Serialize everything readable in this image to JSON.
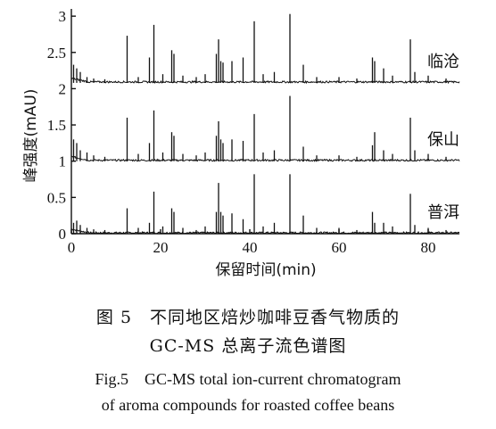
{
  "chart_data": {
    "type": "line",
    "ylabel": "峰强度(mAU)",
    "xlabel": "保留时间(min)",
    "xlim": [
      0,
      87
    ],
    "ylim": [
      0,
      3.1
    ],
    "x_ticks": [
      0,
      20,
      40,
      60,
      80
    ],
    "y_ticks": [
      0,
      0.5,
      1,
      1.5,
      2,
      2.5,
      3
    ],
    "y_tick_labels": [
      "0",
      "0.5",
      "1",
      "1.5",
      "2",
      "2.5",
      "3"
    ],
    "series": [
      {
        "name": "普洱",
        "baseline": 0.0,
        "peaks": [
          [
            0.5,
            0.15
          ],
          [
            1.2,
            0.18
          ],
          [
            2.0,
            0.12
          ],
          [
            3.5,
            0.08
          ],
          [
            5.0,
            0.06
          ],
          [
            7.5,
            0.05
          ],
          [
            12.5,
            0.35
          ],
          [
            15.0,
            0.08
          ],
          [
            17.5,
            0.15
          ],
          [
            18.5,
            0.58
          ],
          [
            20.5,
            0.1
          ],
          [
            22.5,
            0.35
          ],
          [
            23.0,
            0.3
          ],
          [
            25.0,
            0.08
          ],
          [
            28.0,
            0.05
          ],
          [
            30.0,
            0.1
          ],
          [
            32.5,
            0.3
          ],
          [
            33.0,
            0.7
          ],
          [
            33.5,
            0.3
          ],
          [
            34.0,
            0.25
          ],
          [
            36.0,
            0.28
          ],
          [
            38.5,
            0.2
          ],
          [
            41.0,
            0.82
          ],
          [
            43.0,
            0.1
          ],
          [
            45.5,
            0.15
          ],
          [
            49.0,
            0.82
          ],
          [
            52.0,
            0.25
          ],
          [
            55.0,
            0.08
          ],
          [
            60.0,
            0.08
          ],
          [
            64.0,
            0.05
          ],
          [
            67.5,
            0.3
          ],
          [
            68.0,
            0.15
          ],
          [
            70.0,
            0.15
          ],
          [
            72.0,
            0.1
          ],
          [
            76.0,
            0.55
          ],
          [
            77.0,
            0.12
          ],
          [
            80.0,
            0.08
          ],
          [
            84.0,
            0.05
          ]
        ]
      },
      {
        "name": "保山",
        "baseline": 1.0,
        "peaks": [
          [
            0.5,
            0.3
          ],
          [
            1.2,
            0.25
          ],
          [
            2.0,
            0.15
          ],
          [
            3.5,
            0.12
          ],
          [
            5.0,
            0.08
          ],
          [
            7.5,
            0.06
          ],
          [
            12.5,
            0.6
          ],
          [
            15.0,
            0.1
          ],
          [
            17.5,
            0.25
          ],
          [
            18.5,
            0.7
          ],
          [
            20.5,
            0.12
          ],
          [
            22.5,
            0.4
          ],
          [
            23.0,
            0.35
          ],
          [
            25.0,
            0.1
          ],
          [
            28.0,
            0.08
          ],
          [
            30.0,
            0.12
          ],
          [
            32.5,
            0.35
          ],
          [
            33.0,
            0.55
          ],
          [
            33.5,
            0.3
          ],
          [
            34.0,
            0.25
          ],
          [
            36.0,
            0.3
          ],
          [
            38.5,
            0.28
          ],
          [
            41.0,
            0.65
          ],
          [
            43.0,
            0.12
          ],
          [
            45.5,
            0.15
          ],
          [
            49.0,
            0.9
          ],
          [
            52.0,
            0.2
          ],
          [
            55.0,
            0.08
          ],
          [
            60.0,
            0.08
          ],
          [
            64.0,
            0.06
          ],
          [
            67.5,
            0.22
          ],
          [
            68.0,
            0.4
          ],
          [
            70.0,
            0.15
          ],
          [
            72.0,
            0.1
          ],
          [
            76.0,
            0.6
          ],
          [
            77.0,
            0.15
          ],
          [
            80.0,
            0.1
          ],
          [
            84.0,
            0.06
          ]
        ]
      },
      {
        "name": "临沧",
        "baseline": 2.08,
        "peaks": [
          [
            0.5,
            0.25
          ],
          [
            1.2,
            0.2
          ],
          [
            2.0,
            0.15
          ],
          [
            3.5,
            0.08
          ],
          [
            5.0,
            0.06
          ],
          [
            7.5,
            0.05
          ],
          [
            12.5,
            0.65
          ],
          [
            15.0,
            0.08
          ],
          [
            17.5,
            0.35
          ],
          [
            18.5,
            0.8
          ],
          [
            20.5,
            0.12
          ],
          [
            22.5,
            0.45
          ],
          [
            23.0,
            0.4
          ],
          [
            25.0,
            0.1
          ],
          [
            28.0,
            0.08
          ],
          [
            30.0,
            0.12
          ],
          [
            32.5,
            0.4
          ],
          [
            33.0,
            0.6
          ],
          [
            33.5,
            0.3
          ],
          [
            34.0,
            0.28
          ],
          [
            36.0,
            0.3
          ],
          [
            38.5,
            0.35
          ],
          [
            41.0,
            0.85
          ],
          [
            43.0,
            0.12
          ],
          [
            45.5,
            0.15
          ],
          [
            49.0,
            0.95
          ],
          [
            52.0,
            0.25
          ],
          [
            55.0,
            0.08
          ],
          [
            60.0,
            0.08
          ],
          [
            64.0,
            0.06
          ],
          [
            67.5,
            0.35
          ],
          [
            68.0,
            0.3
          ],
          [
            70.0,
            0.2
          ],
          [
            72.0,
            0.1
          ],
          [
            76.0,
            0.6
          ],
          [
            77.0,
            0.15
          ],
          [
            80.0,
            0.1
          ],
          [
            84.0,
            0.06
          ]
        ]
      }
    ]
  },
  "caption": {
    "cn_line1": "图 5　不同地区焙炒咖啡豆香气物质的",
    "cn_line2": "GC-MS 总离子流色谱图",
    "en_line1": "Fig.5　GC-MS total ion-current chromatogram",
    "en_line2": "of aroma compounds for roasted coffee beans"
  }
}
